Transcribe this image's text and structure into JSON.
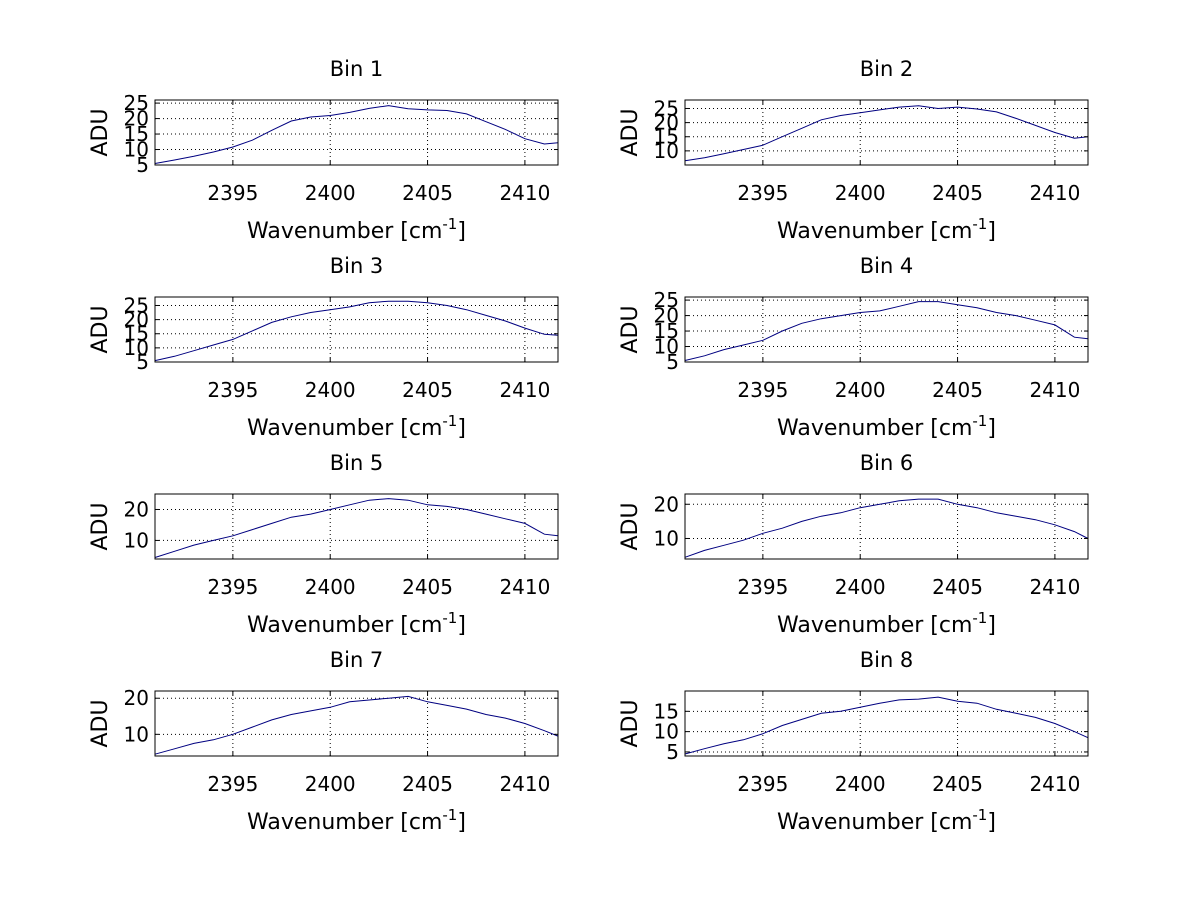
{
  "chart_data": [
    {
      "type": "line",
      "title": "Bin 1",
      "xlabel": "Wavenumber [cm",
      "xlabel_sup": "-1",
      "xlabel_suffix": "]",
      "ylabel": "ADU",
      "xlim": [
        2391,
        2411.7
      ],
      "ylim": [
        5,
        26
      ],
      "xticks": [
        2395,
        2400,
        2405,
        2410
      ],
      "yticks": [
        5,
        10,
        15,
        20,
        25
      ],
      "grid": true,
      "series": [
        {
          "color": "#000080",
          "x": [
            2391,
            2392,
            2393,
            2394,
            2395,
            2396,
            2397,
            2398,
            2399,
            2400,
            2401,
            2402,
            2403,
            2404,
            2405,
            2406,
            2407,
            2408,
            2409,
            2410,
            2411,
            2411.7
          ],
          "y": [
            5.5,
            6.6,
            7.8,
            9.2,
            10.8,
            13,
            16.2,
            19.2,
            20.5,
            21,
            22,
            23.3,
            24.2,
            23.2,
            22.8,
            22.6,
            21.5,
            19,
            16.5,
            13.5,
            11.8,
            12.2
          ]
        }
      ]
    },
    {
      "type": "line",
      "title": "Bin 2",
      "xlabel": "Wavenumber [cm",
      "xlabel_sup": "-1",
      "xlabel_suffix": "]",
      "ylabel": "ADU",
      "xlim": [
        2391,
        2411.7
      ],
      "ylim": [
        5,
        28
      ],
      "xticks": [
        2395,
        2400,
        2405,
        2410
      ],
      "yticks": [
        10,
        15,
        20,
        25
      ],
      "grid": true,
      "series": [
        {
          "color": "#000080",
          "x": [
            2391,
            2392,
            2393,
            2394,
            2395,
            2396,
            2397,
            2398,
            2399,
            2400,
            2401,
            2402,
            2403,
            2404,
            2405,
            2406,
            2407,
            2408,
            2409,
            2410,
            2411,
            2411.7
          ],
          "y": [
            6.5,
            7.6,
            9,
            10.5,
            12,
            15,
            18,
            21,
            22.5,
            23.5,
            24.5,
            25.5,
            26,
            25,
            25.5,
            24.8,
            23.8,
            21.5,
            19,
            16.5,
            14.5,
            15
          ]
        }
      ]
    },
    {
      "type": "line",
      "title": "Bin 3",
      "xlabel": "Wavenumber [cm",
      "xlabel_sup": "-1",
      "xlabel_suffix": "]",
      "ylabel": "ADU",
      "xlim": [
        2391,
        2411.7
      ],
      "ylim": [
        5,
        28
      ],
      "xticks": [
        2395,
        2400,
        2405,
        2410
      ],
      "yticks": [
        5,
        10,
        15,
        20,
        25
      ],
      "grid": true,
      "series": [
        {
          "color": "#000080",
          "x": [
            2391,
            2392,
            2393,
            2394,
            2395,
            2396,
            2397,
            2398,
            2399,
            2400,
            2401,
            2402,
            2403,
            2404,
            2405,
            2406,
            2407,
            2408,
            2409,
            2410,
            2411,
            2411.7
          ],
          "y": [
            5.5,
            7,
            9,
            11,
            13,
            16,
            19,
            21,
            22.5,
            23.5,
            24.5,
            26,
            26.5,
            26.5,
            26,
            25,
            23.5,
            21.5,
            19.5,
            17,
            14.8,
            14.5
          ]
        }
      ]
    },
    {
      "type": "line",
      "title": "Bin 4",
      "xlabel": "Wavenumber [cm",
      "xlabel_sup": "-1",
      "xlabel_suffix": "]",
      "ylabel": "ADU",
      "xlim": [
        2391,
        2411.7
      ],
      "ylim": [
        5,
        26
      ],
      "xticks": [
        2395,
        2400,
        2405,
        2410
      ],
      "yticks": [
        5,
        10,
        15,
        20,
        25
      ],
      "grid": true,
      "series": [
        {
          "color": "#000080",
          "x": [
            2391,
            2392,
            2393,
            2394,
            2395,
            2396,
            2397,
            2398,
            2399,
            2400,
            2401,
            2402,
            2403,
            2404,
            2405,
            2406,
            2407,
            2408,
            2409,
            2410,
            2411,
            2411.7
          ],
          "y": [
            5.5,
            7,
            9,
            10.5,
            12,
            15,
            17.5,
            19,
            20,
            21,
            21.5,
            23,
            24.5,
            24.5,
            23.5,
            22.5,
            21,
            20,
            18.5,
            17,
            13,
            12.5
          ]
        }
      ]
    },
    {
      "type": "line",
      "title": "Bin 5",
      "xlabel": "Wavenumber [cm",
      "xlabel_sup": "-1",
      "xlabel_suffix": "]",
      "ylabel": "ADU",
      "xlim": [
        2391,
        2411.7
      ],
      "ylim": [
        4,
        25
      ],
      "xticks": [
        2395,
        2400,
        2405,
        2410
      ],
      "yticks": [
        10,
        20
      ],
      "grid": true,
      "series": [
        {
          "color": "#000080",
          "x": [
            2391,
            2392,
            2393,
            2394,
            2395,
            2396,
            2397,
            2398,
            2399,
            2400,
            2401,
            2402,
            2403,
            2404,
            2405,
            2406,
            2407,
            2408,
            2409,
            2410,
            2411,
            2411.7
          ],
          "y": [
            4.5,
            6.5,
            8.5,
            10,
            11.5,
            13.5,
            15.5,
            17.5,
            18.5,
            20,
            21.5,
            23,
            23.5,
            23,
            21.5,
            21,
            20,
            18.5,
            17,
            15.5,
            12,
            11.5
          ]
        }
      ]
    },
    {
      "type": "line",
      "title": "Bin 6",
      "xlabel": "Wavenumber [cm",
      "xlabel_sup": "-1",
      "xlabel_suffix": "]",
      "ylabel": "ADU",
      "xlim": [
        2391,
        2411.7
      ],
      "ylim": [
        4,
        23
      ],
      "xticks": [
        2395,
        2400,
        2405,
        2410
      ],
      "yticks": [
        10,
        20
      ],
      "grid": true,
      "series": [
        {
          "color": "#000080",
          "x": [
            2391,
            2392,
            2393,
            2394,
            2395,
            2396,
            2397,
            2398,
            2399,
            2400,
            2401,
            2402,
            2403,
            2404,
            2405,
            2406,
            2407,
            2408,
            2409,
            2410,
            2411,
            2411.7
          ],
          "y": [
            4.5,
            6.5,
            8,
            9.5,
            11.5,
            13,
            15,
            16.5,
            17.5,
            19,
            20,
            21,
            21.5,
            21.5,
            20,
            19,
            17.5,
            16.5,
            15.5,
            14,
            12,
            10
          ]
        }
      ]
    },
    {
      "type": "line",
      "title": "Bin 7",
      "xlabel": "Wavenumber [cm",
      "xlabel_sup": "-1",
      "xlabel_suffix": "]",
      "ylabel": "ADU",
      "xlim": [
        2391,
        2411.7
      ],
      "ylim": [
        4,
        22
      ],
      "xticks": [
        2395,
        2400,
        2405,
        2410
      ],
      "yticks": [
        10,
        20
      ],
      "grid": true,
      "series": [
        {
          "color": "#000080",
          "x": [
            2391,
            2392,
            2393,
            2394,
            2395,
            2396,
            2397,
            2398,
            2399,
            2400,
            2401,
            2402,
            2403,
            2404,
            2405,
            2406,
            2407,
            2408,
            2409,
            2410,
            2411,
            2411.7
          ],
          "y": [
            4.5,
            6,
            7.5,
            8.5,
            10,
            12,
            14,
            15.5,
            16.5,
            17.5,
            19,
            19.5,
            20,
            20.5,
            19,
            18,
            17,
            15.5,
            14.5,
            13,
            11,
            9.5
          ]
        }
      ]
    },
    {
      "type": "line",
      "title": "Bin 8",
      "xlabel": "Wavenumber [cm",
      "xlabel_sup": "-1",
      "xlabel_suffix": "]",
      "ylabel": "ADU",
      "xlim": [
        2391,
        2411.7
      ],
      "ylim": [
        4,
        20
      ],
      "xticks": [
        2395,
        2400,
        2405,
        2410
      ],
      "yticks": [
        5,
        10,
        15
      ],
      "grid": true,
      "series": [
        {
          "color": "#000080",
          "x": [
            2391,
            2392,
            2393,
            2394,
            2395,
            2396,
            2397,
            2398,
            2399,
            2400,
            2401,
            2402,
            2403,
            2404,
            2405,
            2406,
            2407,
            2408,
            2409,
            2410,
            2411,
            2411.7
          ],
          "y": [
            4.5,
            5.8,
            7,
            8,
            9.5,
            11.5,
            13,
            14.5,
            15,
            16,
            17,
            17.8,
            18,
            18.5,
            17.5,
            17,
            15.5,
            14.5,
            13.5,
            12,
            10,
            8.5
          ]
        }
      ]
    }
  ]
}
